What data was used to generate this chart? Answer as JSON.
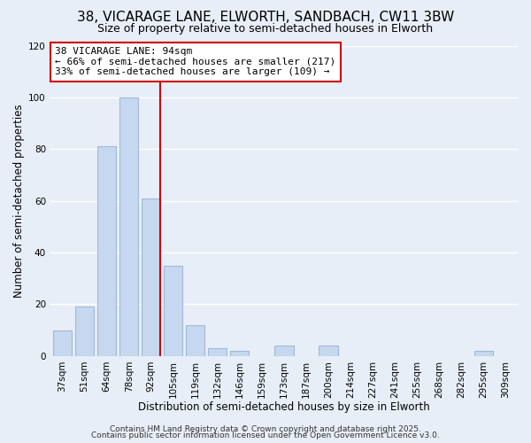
{
  "title": "38, VICARAGE LANE, ELWORTH, SANDBACH, CW11 3BW",
  "subtitle": "Size of property relative to semi-detached houses in Elworth",
  "xlabel": "Distribution of semi-detached houses by size in Elworth",
  "ylabel": "Number of semi-detached properties",
  "bar_labels": [
    "37sqm",
    "51sqm",
    "64sqm",
    "78sqm",
    "92sqm",
    "105sqm",
    "119sqm",
    "132sqm",
    "146sqm",
    "159sqm",
    "173sqm",
    "187sqm",
    "200sqm",
    "214sqm",
    "227sqm",
    "241sqm",
    "255sqm",
    "268sqm",
    "282sqm",
    "295sqm",
    "309sqm"
  ],
  "bar_values": [
    10,
    19,
    81,
    100,
    61,
    35,
    12,
    3,
    2,
    0,
    4,
    0,
    4,
    0,
    0,
    0,
    0,
    0,
    0,
    2,
    0
  ],
  "bar_color": "#c5d8f0",
  "bar_edge_color": "#a0b8d8",
  "vline_color": "#cc0000",
  "vline_bar_index": 4,
  "ylim": [
    0,
    120
  ],
  "yticks": [
    0,
    20,
    40,
    60,
    80,
    100,
    120
  ],
  "annotation_title": "38 VICARAGE LANE: 94sqm",
  "annotation_line1": "← 66% of semi-detached houses are smaller (217)",
  "annotation_line2": "33% of semi-detached houses are larger (109) →",
  "annotation_box_facecolor": "#ffffff",
  "annotation_box_edgecolor": "#cc0000",
  "footer1": "Contains HM Land Registry data © Crown copyright and database right 2025.",
  "footer2": "Contains public sector information licensed under the Open Government Licence v3.0.",
  "background_color": "#e8eef8",
  "grid_color": "#ffffff",
  "title_fontsize": 11,
  "subtitle_fontsize": 9,
  "axis_label_fontsize": 8.5,
  "tick_fontsize": 7.5,
  "annotation_fontsize": 8,
  "footer_fontsize": 6.5
}
